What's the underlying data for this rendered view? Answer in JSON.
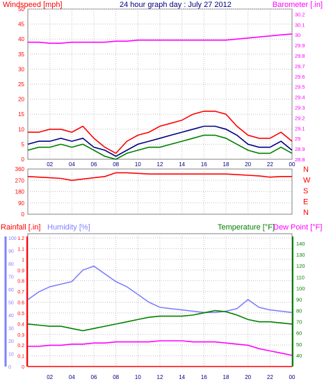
{
  "chart_data": [
    {
      "type": "line",
      "title": "24 hour graph day : July 27 2012",
      "left_axis_label": "Windspeed [mph]",
      "right_axis_label": "Barometer [.in]",
      "x_ticks": [
        "02",
        "04",
        "06",
        "08",
        "10",
        "12",
        "14",
        "16",
        "18",
        "20",
        "22",
        "00"
      ],
      "left_ticks": [
        "0",
        "5",
        "10",
        "15",
        "20",
        "25",
        "30",
        "35",
        "40",
        "45",
        "50"
      ],
      "right_ticks": [
        "28.8",
        "28.9",
        "29",
        "29.1",
        "29.2",
        "29.3",
        "29.4",
        "29.5",
        "29.6",
        "29.7",
        "29.8",
        "29.9",
        "30",
        "30.1",
        "30.2"
      ],
      "left_ylim": [
        0,
        50
      ],
      "right_ylim": [
        28.8,
        30.25
      ],
      "x_hours": [
        0,
        1,
        2,
        3,
        4,
        5,
        6,
        7,
        8,
        9,
        10,
        11,
        12,
        13,
        14,
        15,
        16,
        17,
        18,
        19,
        20,
        21,
        22,
        23,
        24
      ],
      "series": [
        {
          "axis": "left",
          "color": "#ff0000",
          "values": [
            9,
            9,
            10,
            10,
            9,
            11,
            7,
            4,
            2,
            6,
            8,
            9,
            11,
            12,
            13,
            15,
            16,
            16,
            15,
            11,
            8,
            7,
            7,
            9,
            6
          ]
        },
        {
          "axis": "left",
          "color": "#000080",
          "values": [
            5,
            6,
            6,
            7,
            6,
            7,
            4,
            3,
            1,
            3,
            5,
            6,
            7,
            8,
            9,
            10,
            11,
            11,
            10,
            8,
            5,
            4,
            4,
            6,
            3
          ]
        },
        {
          "axis": "left",
          "color": "#008000",
          "values": [
            3,
            4,
            4,
            5,
            4,
            5,
            3,
            1,
            0,
            2,
            3,
            4,
            4,
            5,
            6,
            7,
            8,
            8,
            7,
            5,
            3,
            2,
            2,
            4,
            2
          ]
        },
        {
          "axis": "right",
          "color": "#ff00ff",
          "values": [
            29.93,
            29.93,
            29.92,
            29.92,
            29.93,
            29.93,
            29.93,
            29.93,
            29.94,
            29.94,
            29.95,
            29.95,
            29.95,
            29.95,
            29.95,
            29.95,
            29.95,
            29.95,
            29.95,
            29.96,
            29.97,
            29.98,
            29.99,
            30.0,
            30.01
          ]
        }
      ]
    },
    {
      "type": "line",
      "left_ticks": [
        "0",
        "90",
        "180",
        "270",
        "360"
      ],
      "right_ticks": [
        "N",
        "W",
        "S",
        "E",
        "N"
      ],
      "ylim": [
        0,
        360
      ],
      "x_hours": [
        0,
        1,
        2,
        3,
        4,
        5,
        6,
        7,
        8,
        9,
        10,
        11,
        12,
        13,
        14,
        15,
        16,
        17,
        18,
        19,
        20,
        21,
        22,
        23,
        24
      ],
      "series": [
        {
          "color": "#ff0000",
          "values": [
            300,
            295,
            290,
            285,
            270,
            280,
            290,
            300,
            330,
            330,
            325,
            320,
            320,
            320,
            320,
            320,
            320,
            320,
            320,
            315,
            310,
            305,
            295,
            300,
            300
          ]
        }
      ]
    },
    {
      "type": "line",
      "labels": {
        "rainfall": "Rainfall [.in]",
        "humidity": "Humidity [%]",
        "temperature": "Temperature [°F]",
        "dewpoint": "Dew Point [°F]"
      },
      "x_ticks": [
        "02",
        "04",
        "06",
        "08",
        "10",
        "12",
        "14",
        "16",
        "18",
        "20",
        "22",
        "00"
      ],
      "rain_ticks": [
        "0",
        "0.1",
        "0.2",
        "0.3",
        "0.4",
        "0.5",
        "0.6",
        "0.7",
        "0.8",
        "0.9",
        "1",
        "1.1",
        "1.2"
      ],
      "humidity_ticks": [
        "0",
        "10",
        "20",
        "30",
        "40",
        "50",
        "60",
        "70",
        "80",
        "90",
        "100"
      ],
      "temp_ticks": [
        "40",
        "50",
        "60",
        "70",
        "80",
        "90",
        "100",
        "110",
        "120",
        "130",
        "140"
      ],
      "rain_ylim": [
        0,
        1.2
      ],
      "humidity_ylim": [
        0,
        100
      ],
      "temp_ylim": [
        30,
        145
      ],
      "x_hours": [
        0,
        1,
        2,
        3,
        4,
        5,
        6,
        7,
        8,
        9,
        10,
        11,
        12,
        13,
        14,
        15,
        16,
        17,
        18,
        19,
        20,
        21,
        22,
        23,
        24
      ],
      "series": [
        {
          "name": "Humidity [%]",
          "axis": "humidity",
          "color": "#8080ff",
          "values": [
            52,
            58,
            62,
            64,
            66,
            75,
            78,
            72,
            66,
            62,
            56,
            50,
            46,
            45,
            44,
            43,
            42,
            42,
            43,
            45,
            52,
            46,
            44,
            43,
            42
          ]
        },
        {
          "name": "Temperature [°F]",
          "axis": "temp",
          "color": "#008000",
          "values": [
            68,
            67,
            66,
            66,
            64,
            62,
            64,
            66,
            68,
            70,
            72,
            74,
            75,
            75,
            75,
            76,
            78,
            80,
            79,
            76,
            72,
            70,
            70,
            69,
            68
          ]
        },
        {
          "name": "Dew Point [°F]",
          "axis": "temp",
          "color": "#ff00ff",
          "values": [
            48,
            48,
            49,
            49,
            50,
            50,
            51,
            51,
            52,
            52,
            52,
            52,
            53,
            53,
            53,
            52,
            52,
            52,
            51,
            50,
            49,
            46,
            44,
            42,
            40
          ]
        },
        {
          "name": "Rainfall [.in]",
          "axis": "rain",
          "color": "#ff0000",
          "values": [
            0,
            0,
            0,
            0,
            0,
            0,
            0,
            0,
            0,
            0,
            0,
            0,
            0,
            0,
            0,
            0,
            0,
            0,
            0,
            0,
            0,
            0,
            0,
            0,
            0
          ]
        }
      ]
    }
  ]
}
